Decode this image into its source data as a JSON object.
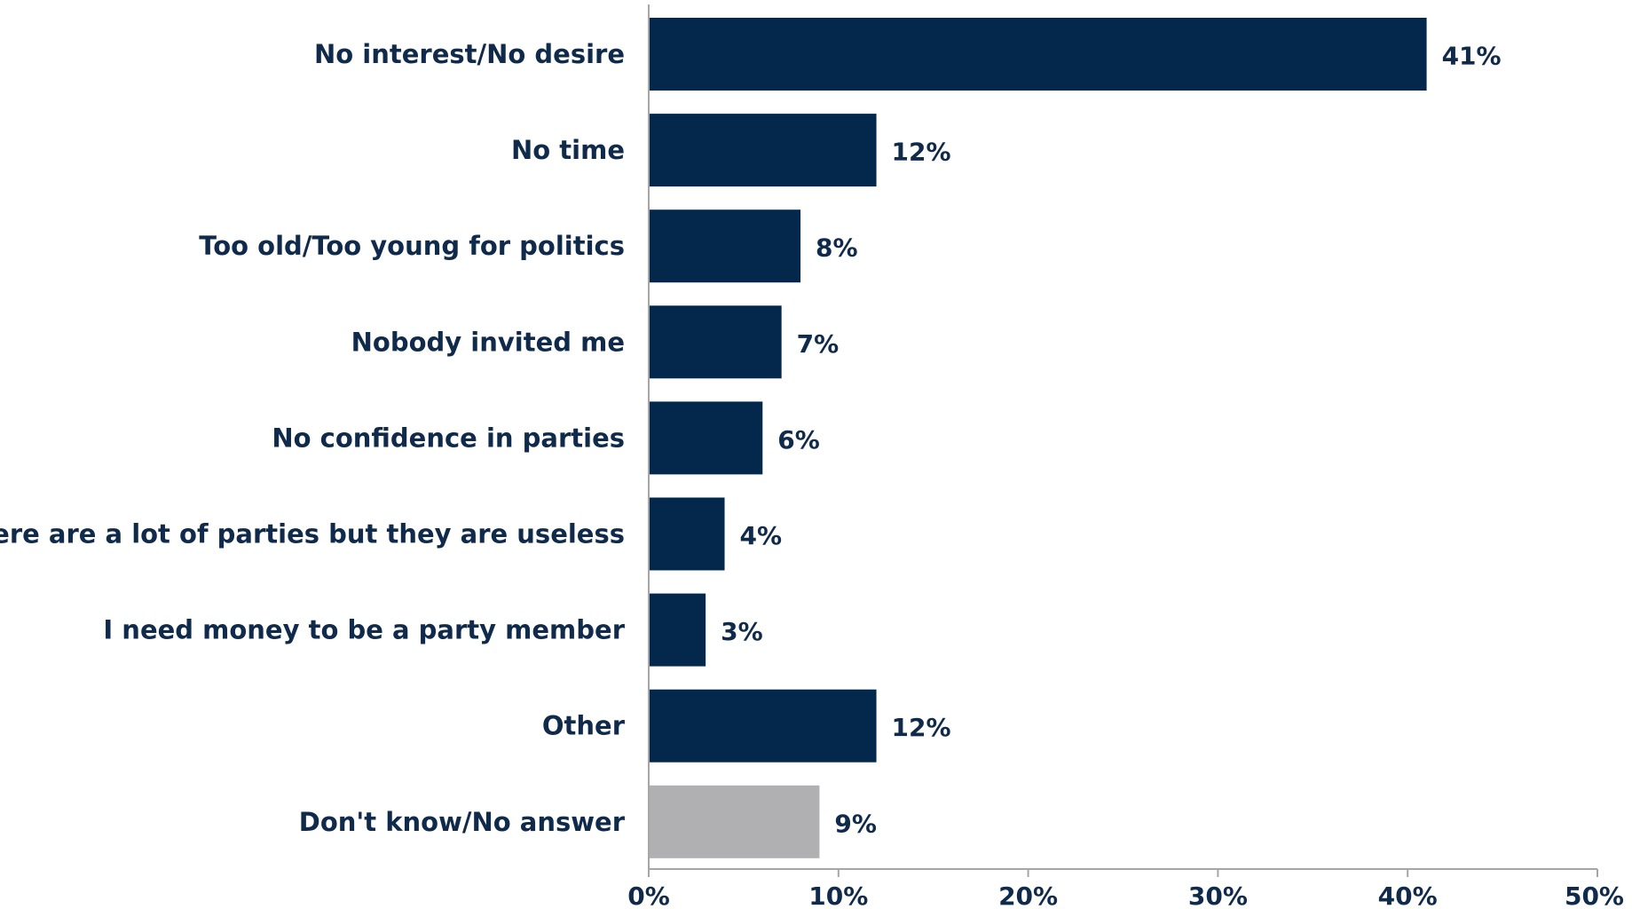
{
  "chart_data": {
    "type": "bar",
    "orientation": "horizontal",
    "categories": [
      "No interest/No desire",
      "No time",
      "Too old/Too young for politics",
      "Nobody invited me",
      "No confidence in parties",
      "There are a lot of parties but they are useless",
      "I need money to be a party member",
      "Other",
      "Don't know/No answer"
    ],
    "values": [
      41,
      12,
      8,
      7,
      6,
      4,
      3,
      12,
      9
    ],
    "value_labels": [
      "41%",
      "12%",
      "8%",
      "7%",
      "6%",
      "4%",
      "3%",
      "12%",
      "9%"
    ],
    "bar_colors": [
      "#03284c",
      "#03284c",
      "#03284c",
      "#03284c",
      "#03284c",
      "#03284c",
      "#03284c",
      "#03284c",
      "#b0b0b2"
    ],
    "xlim": [
      0,
      50
    ],
    "x_ticks": [
      0,
      10,
      20,
      30,
      40,
      50
    ],
    "x_tick_labels": [
      "0%",
      "10%",
      "20%",
      "30%",
      "40%",
      "50%"
    ],
    "grid": false,
    "legend": "none",
    "title": "",
    "xlabel": "",
    "ylabel": ""
  }
}
